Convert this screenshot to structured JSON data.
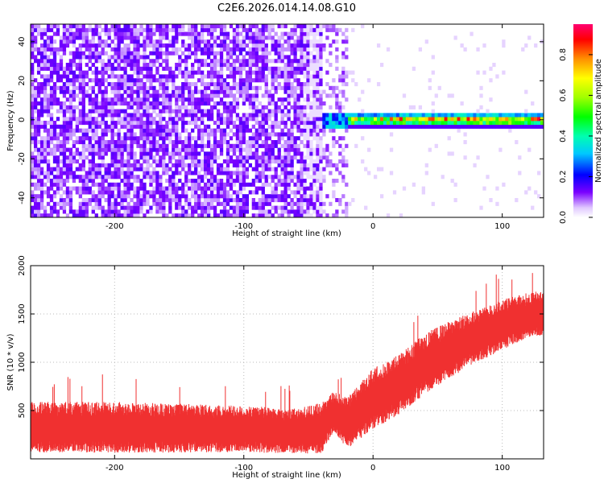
{
  "title": "C2E6.2026.014.14.08.G10",
  "chart_data": [
    {
      "type": "heatmap",
      "xlabel": "Height of straight line (km)",
      "ylabel": "Frequency (Hz)",
      "xlim": [
        -265,
        132
      ],
      "ylim": [
        -50,
        49
      ],
      "xticks": [
        -200,
        -100,
        0,
        100
      ],
      "yticks": [
        -40,
        -20,
        0,
        20,
        40
      ],
      "colorbar": {
        "label": "Normalized spectral amplitude",
        "range": [
          0,
          0.95
        ],
        "ticks": [
          0.0,
          0.2,
          0.4,
          0.6,
          0.8
        ],
        "tick_labels": [
          "0.0",
          "0.2",
          "0.4",
          "0.6",
          "0.8"
        ],
        "colormap": "rainbow"
      },
      "features": {
        "noise_region_x": [
          -265,
          -40
        ],
        "signal_onset_x": -40,
        "signal_center_frequency": 0,
        "signal_band_halfwidth": 3.5
      }
    },
    {
      "type": "line",
      "xlabel": "Height of straight line (km)",
      "ylabel": "SNR (10 * v/v)",
      "xlim": [
        -265,
        132
      ],
      "ylim": [
        0,
        2000
      ],
      "xticks": [
        -200,
        -100,
        0,
        100
      ],
      "yticks": [
        500,
        1000,
        1500,
        2000
      ],
      "grid": true,
      "series": [
        {
          "color": "#f03030",
          "x": [
            -265,
            -200,
            -150,
            -100,
            -60,
            -40,
            -30,
            -20,
            0,
            20,
            40,
            60,
            80,
            100,
            120,
            132
          ],
          "y_mean": [
            340,
            340,
            330,
            320,
            300,
            330,
            500,
            380,
            640,
            780,
            1000,
            1150,
            1280,
            1400,
            1500,
            1520
          ],
          "y_spread": [
            250,
            250,
            240,
            230,
            220,
            250,
            200,
            250,
            300,
            300,
            300,
            280,
            260,
            250,
            220,
            220
          ]
        }
      ]
    }
  ]
}
